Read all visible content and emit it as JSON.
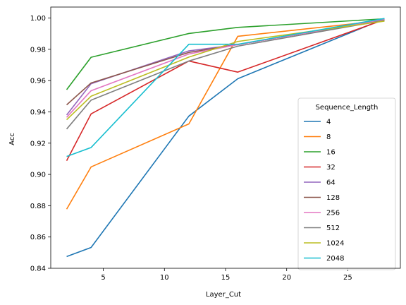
{
  "chart_data": {
    "type": "line",
    "title": "",
    "xlabel": "Layer_Cut",
    "ylabel": "Acc",
    "xlim": [
      0.7,
      29.3
    ],
    "ylim": [
      0.84,
      1.007
    ],
    "xticks": [
      5,
      10,
      15,
      20,
      25
    ],
    "yticks": [
      0.84,
      0.86,
      0.88,
      0.9,
      0.92,
      0.94,
      0.96,
      0.98,
      1.0
    ],
    "ytick_labels": [
      "0.84",
      "0.86",
      "0.88",
      "0.90",
      "0.92",
      "0.94",
      "0.96",
      "0.98",
      "1.00"
    ],
    "grid": false,
    "legend": {
      "title": "Sequence_Length",
      "position": "center-right"
    },
    "x": [
      2,
      4,
      12,
      16,
      28
    ],
    "series": [
      {
        "name": "4",
        "color": "#1f77b4",
        "values": [
          0.8475,
          0.8533,
          0.9373,
          0.9612,
          0.9995
        ]
      },
      {
        "name": "8",
        "color": "#ff7f0e",
        "values": [
          0.8778,
          0.9048,
          0.9323,
          0.9883,
          0.9985
        ]
      },
      {
        "name": "16",
        "color": "#2ca02c",
        "values": [
          0.9542,
          0.9749,
          0.9901,
          0.994,
          0.9995
        ]
      },
      {
        "name": "32",
        "color": "#d62728",
        "values": [
          0.9088,
          0.9387,
          0.9725,
          0.9654,
          0.999
        ]
      },
      {
        "name": "64",
        "color": "#9467bd",
        "values": [
          0.938,
          0.958,
          0.979,
          0.983,
          0.999
        ]
      },
      {
        "name": "128",
        "color": "#8c564b",
        "values": [
          0.9445,
          0.9585,
          0.978,
          0.983,
          0.999
        ]
      },
      {
        "name": "256",
        "color": "#e377c2",
        "values": [
          0.9365,
          0.9535,
          0.977,
          0.983,
          0.999
        ]
      },
      {
        "name": "512",
        "color": "#7f7f7f",
        "values": [
          0.929,
          0.9475,
          0.9725,
          0.982,
          0.9985
        ]
      },
      {
        "name": "1024",
        "color": "#bcbd22",
        "values": [
          0.935,
          0.95,
          0.975,
          0.985,
          0.998
        ]
      },
      {
        "name": "2048",
        "color": "#17becf",
        "values": [
          0.9115,
          0.9172,
          0.9832,
          0.9832,
          0.9997
        ]
      }
    ]
  }
}
